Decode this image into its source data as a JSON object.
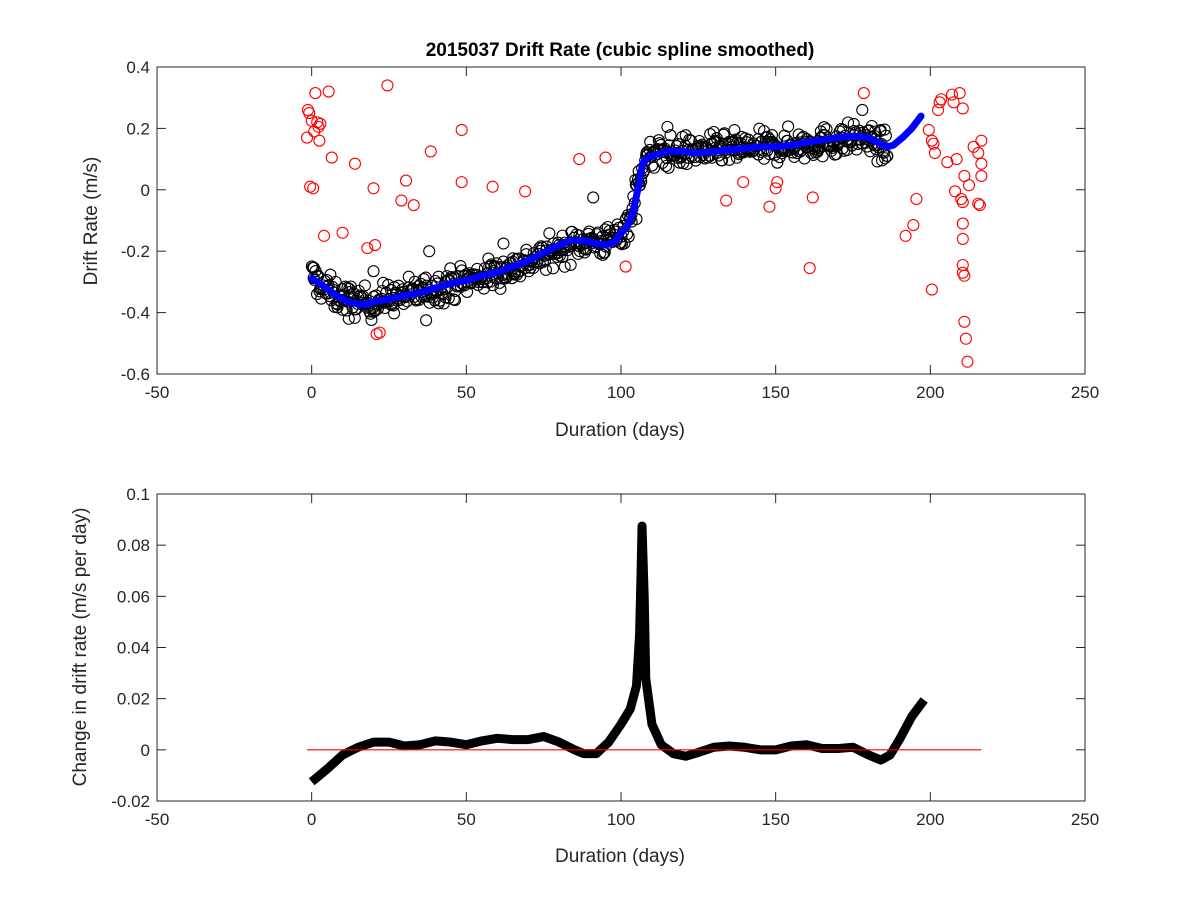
{
  "chart_data": [
    {
      "type": "scatter",
      "title": "2015037  Drift Rate (cubic spline smoothed)",
      "xlabel": "Duration (days)",
      "ylabel": "Drift Rate  (m/s)",
      "xlim": [
        -50,
        250
      ],
      "ylim": [
        -0.6,
        0.4
      ],
      "xticks": [
        -50,
        0,
        50,
        100,
        150,
        200,
        250
      ],
      "yticks": [
        -0.6,
        -0.4,
        -0.2,
        0,
        0.2,
        0.4
      ],
      "xtick_labels": [
        "-50",
        "0",
        "50",
        "100",
        "150",
        "200",
        "250"
      ],
      "ytick_labels": [
        "-0.6",
        "-0.4",
        "-0.2",
        "0",
        "0.2",
        "0.4"
      ],
      "grid": false,
      "legend": "none",
      "series": [
        {
          "kind": "scatter",
          "marker": "open-circle",
          "color": "#ff0000",
          "points": [
            [
              -1.5,
              0.17
            ],
            [
              -1.2,
              0.26
            ],
            [
              -0.8,
              0.25
            ],
            [
              -0.5,
              0.01
            ],
            [
              0,
              0.225
            ],
            [
              0.5,
              0.005
            ],
            [
              0.8,
              0.19
            ],
            [
              1.2,
              0.315
            ],
            [
              1.8,
              0.22
            ],
            [
              2.2,
              0.205
            ],
            [
              2.8,
              0.215
            ],
            [
              2.5,
              0.16
            ],
            [
              4,
              -0.15
            ],
            [
              5.5,
              0.32
            ],
            [
              6.5,
              0.105
            ],
            [
              10,
              -0.14
            ],
            [
              14,
              0.085
            ],
            [
              18,
              -0.19
            ],
            [
              20,
              0.005
            ],
            [
              20.5,
              -0.18
            ],
            [
              21,
              -0.47
            ],
            [
              22,
              -0.465
            ],
            [
              24.5,
              0.34
            ],
            [
              29,
              -0.035
            ],
            [
              30.5,
              0.03
            ],
            [
              33,
              -0.05
            ],
            [
              38.5,
              0.125
            ],
            [
              48.5,
              0.195
            ],
            [
              48.5,
              0.025
            ],
            [
              58.5,
              0.01
            ],
            [
              69,
              -0.005
            ],
            [
              86.5,
              0.1
            ],
            [
              95,
              0.105
            ],
            [
              101.5,
              -0.25
            ],
            [
              134,
              -0.035
            ],
            [
              139.5,
              0.025
            ],
            [
              148,
              -0.055
            ],
            [
              150,
              0.005
            ],
            [
              150.5,
              0.025
            ],
            [
              161,
              -0.255
            ],
            [
              162,
              -0.025
            ],
            [
              178.5,
              0.315
            ],
            [
              192,
              -0.15
            ],
            [
              194.5,
              -0.115
            ],
            [
              195.5,
              -0.03
            ],
            [
              199.5,
              0.195
            ],
            [
              200.5,
              0.16
            ],
            [
              201,
              0.15
            ],
            [
              201.5,
              0.12
            ],
            [
              200.5,
              -0.325
            ],
            [
              202.5,
              0.26
            ],
            [
              203,
              0.285
            ],
            [
              203.5,
              0.295
            ],
            [
              205.5,
              0.09
            ],
            [
              207,
              0.31
            ],
            [
              207.5,
              0.285
            ],
            [
              208,
              -0.005
            ],
            [
              208.5,
              0.1
            ],
            [
              209.5,
              0.315
            ],
            [
              210.5,
              0.265
            ],
            [
              210,
              -0.03
            ],
            [
              210.5,
              -0.04
            ],
            [
              211,
              0.045
            ],
            [
              210.5,
              -0.11
            ],
            [
              210.5,
              -0.16
            ],
            [
              210.5,
              -0.245
            ],
            [
              210.5,
              -0.27
            ],
            [
              211,
              -0.28
            ],
            [
              211,
              -0.43
            ],
            [
              211.5,
              -0.485
            ],
            [
              212,
              -0.56
            ],
            [
              212.5,
              0.015
            ],
            [
              214,
              0.14
            ],
            [
              215.5,
              0.12
            ],
            [
              216.5,
              0.16
            ],
            [
              215.5,
              -0.045
            ],
            [
              216,
              -0.05
            ],
            [
              216.5,
              0.085
            ],
            [
              216.5,
              0.045
            ]
          ]
        },
        {
          "kind": "scatter",
          "marker": "open-circle",
          "color": "#000000",
          "cloud": {
            "center_trend": [
              [
                0,
                -0.275
              ],
              [
                3,
                -0.315
              ],
              [
                8,
                -0.345
              ],
              [
                13,
                -0.36
              ],
              [
                18,
                -0.37
              ],
              [
                24,
                -0.355
              ],
              [
                30,
                -0.345
              ],
              [
                40,
                -0.32
              ],
              [
                50,
                -0.295
              ],
              [
                60,
                -0.27
              ],
              [
                70,
                -0.235
              ],
              [
                80,
                -0.195
              ],
              [
                88,
                -0.165
              ],
              [
                95,
                -0.17
              ],
              [
                100,
                -0.145
              ],
              [
                103,
                -0.09
              ],
              [
                106,
                0.05
              ],
              [
                108,
                0.1
              ],
              [
                112,
                0.12
              ],
              [
                120,
                0.125
              ],
              [
                130,
                0.13
              ],
              [
                140,
                0.135
              ],
              [
                150,
                0.14
              ],
              [
                160,
                0.15
              ],
              [
                170,
                0.16
              ],
              [
                178,
                0.17
              ],
              [
                183,
                0.15
              ],
              [
                186,
                0.13
              ]
            ],
            "x_range": [
              0,
              186
            ],
            "spread": 0.045,
            "count": 700
          },
          "extra_points": [
            [
              12,
              -0.42
            ],
            [
              20,
              -0.265
            ],
            [
              37,
              -0.425
            ],
            [
              38,
              -0.2
            ],
            [
              62,
              -0.175
            ],
            [
              91,
              -0.025
            ],
            [
              105,
              -0.095
            ],
            [
              106,
              0.015
            ],
            [
              115,
              0.205
            ],
            [
              178,
              0.26
            ],
            [
              186,
              0.11
            ]
          ]
        },
        {
          "kind": "line",
          "color": "#0000ff",
          "points": [
            [
              0,
              -0.29
            ],
            [
              2,
              -0.3
            ],
            [
              4,
              -0.315
            ],
            [
              6,
              -0.33
            ],
            [
              8,
              -0.345
            ],
            [
              10,
              -0.355
            ],
            [
              12,
              -0.365
            ],
            [
              14,
              -0.37
            ],
            [
              17,
              -0.375
            ],
            [
              20,
              -0.365
            ],
            [
              24,
              -0.358
            ],
            [
              30,
              -0.345
            ],
            [
              35,
              -0.335
            ],
            [
              40,
              -0.32
            ],
            [
              45,
              -0.305
            ],
            [
              50,
              -0.295
            ],
            [
              55,
              -0.28
            ],
            [
              60,
              -0.268
            ],
            [
              65,
              -0.25
            ],
            [
              70,
              -0.23
            ],
            [
              75,
              -0.205
            ],
            [
              80,
              -0.18
            ],
            [
              84,
              -0.165
            ],
            [
              88,
              -0.165
            ],
            [
              92,
              -0.175
            ],
            [
              95,
              -0.18
            ],
            [
              98,
              -0.17
            ],
            [
              100,
              -0.14
            ],
            [
              102,
              -0.12
            ],
            [
              104,
              -0.07
            ],
            [
              105,
              -0.02
            ],
            [
              106,
              0.03
            ],
            [
              107,
              0.085
            ],
            [
              108,
              0.1
            ],
            [
              110,
              0.11
            ],
            [
              115,
              0.125
            ],
            [
              120,
              0.125
            ],
            [
              125,
              0.12
            ],
            [
              130,
              0.125
            ],
            [
              135,
              0.13
            ],
            [
              140,
              0.135
            ],
            [
              145,
              0.14
            ],
            [
              150,
              0.14
            ],
            [
              155,
              0.145
            ],
            [
              160,
              0.155
            ],
            [
              165,
              0.162
            ],
            [
              170,
              0.17
            ],
            [
              175,
              0.175
            ],
            [
              180,
              0.17
            ],
            [
              184,
              0.15
            ],
            [
              186,
              0.14
            ],
            [
              188,
              0.145
            ],
            [
              191,
              0.17
            ],
            [
              194,
              0.2
            ],
            [
              197,
              0.24
            ]
          ]
        }
      ]
    },
    {
      "type": "line",
      "title": "",
      "xlabel": "Duration (days)",
      "ylabel": "Change in drift rate (m/s per day)",
      "xlim": [
        -50,
        250
      ],
      "ylim": [
        -0.02,
        0.1
      ],
      "xticks": [
        -50,
        0,
        50,
        100,
        150,
        200,
        250
      ],
      "yticks": [
        -0.02,
        0,
        0.02,
        0.04,
        0.06,
        0.08,
        0.1
      ],
      "xtick_labels": [
        "-50",
        "0",
        "50",
        "100",
        "150",
        "200",
        "250"
      ],
      "ytick_labels": [
        "-0.02",
        "0",
        "0.02",
        "0.04",
        "0.06",
        "0.08",
        "0.1"
      ],
      "grid": false,
      "legend": "none",
      "series": [
        {
          "kind": "line",
          "color": "#000000",
          "points": [
            [
              0,
              -0.0125
            ],
            [
              5,
              -0.0075
            ],
            [
              10,
              -0.002
            ],
            [
              15,
              0.001
            ],
            [
              20,
              0.003
            ],
            [
              25,
              0.003
            ],
            [
              30,
              0.0015
            ],
            [
              35,
              0.002
            ],
            [
              40,
              0.0035
            ],
            [
              45,
              0.003
            ],
            [
              50,
              0.002
            ],
            [
              55,
              0.0035
            ],
            [
              60,
              0.0045
            ],
            [
              65,
              0.004
            ],
            [
              70,
              0.004
            ],
            [
              75,
              0.0052
            ],
            [
              80,
              0.003
            ],
            [
              85,
              0.0
            ],
            [
              88,
              -0.0015
            ],
            [
              92,
              -0.0015
            ],
            [
              96,
              0.003
            ],
            [
              100,
              0.01
            ],
            [
              103,
              0.016
            ],
            [
              105,
              0.025
            ],
            [
              106,
              0.045
            ],
            [
              106.5,
              0.07
            ],
            [
              106.8,
              0.0875
            ],
            [
              107.5,
              0.06
            ],
            [
              108,
              0.028
            ],
            [
              110,
              0.01
            ],
            [
              113,
              0.002
            ],
            [
              117,
              -0.0015
            ],
            [
              121,
              -0.0025
            ],
            [
              125,
              -0.001
            ],
            [
              130,
              0.001
            ],
            [
              135,
              0.0015
            ],
            [
              140,
              0.001
            ],
            [
              145,
              0.0
            ],
            [
              150,
              0.0
            ],
            [
              155,
              0.0015
            ],
            [
              160,
              0.002
            ],
            [
              165,
              0.0005
            ],
            [
              170,
              0.0005
            ],
            [
              175,
              0.001
            ],
            [
              180,
              -0.002
            ],
            [
              184,
              -0.004
            ],
            [
              187,
              -0.002
            ],
            [
              190,
              0.004
            ],
            [
              194,
              0.013
            ],
            [
              198,
              0.0195
            ]
          ]
        },
        {
          "kind": "line",
          "color": "#ff0000",
          "points": [
            [
              -1.5,
              0
            ],
            [
              216.5,
              0
            ]
          ]
        }
      ]
    }
  ]
}
